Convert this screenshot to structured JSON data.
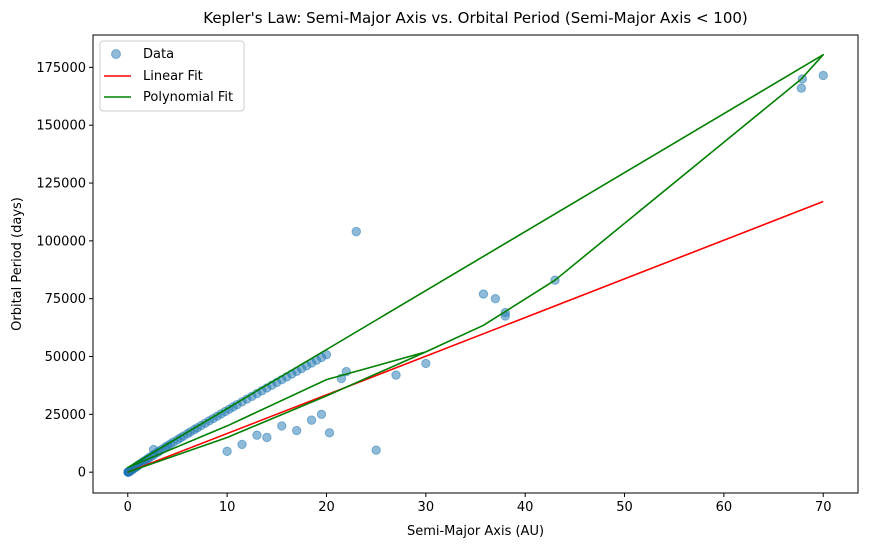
{
  "chart_data": {
    "type": "scatter",
    "title": "Kepler's Law: Semi-Major Axis vs. Orbital Period (Semi-Major Axis < 100)",
    "xlabel": "Semi-Major Axis (AU)",
    "ylabel": "Orbital Period (days)",
    "xlim": [
      -3.5,
      73.5
    ],
    "ylim": [
      -9000,
      189000
    ],
    "xticks": [
      0,
      10,
      20,
      30,
      40,
      50,
      60,
      70
    ],
    "yticks": [
      0,
      25000,
      50000,
      75000,
      100000,
      125000,
      150000,
      175000
    ],
    "grid": false,
    "legend_position": "top-left",
    "colors": {
      "data": "#1f77b4",
      "linear": "#ff0000",
      "poly": "#008000"
    },
    "legend": [
      "Data",
      "Linear Fit",
      "Polynomial Fit"
    ],
    "series": [
      {
        "name": "Data",
        "kind": "scatter",
        "x": [
          0.02,
          0.04,
          0.05,
          0.06,
          0.08,
          0.1,
          0.12,
          0.15,
          0.2,
          0.25,
          0.3,
          0.4,
          0.5,
          0.6,
          0.7,
          0.8,
          0.9,
          1.0,
          1.1,
          1.2,
          1.3,
          1.5,
          1.6,
          1.8,
          2.0,
          2.2,
          2.5,
          2.7,
          3.0,
          3.2,
          3.5,
          3.8,
          4.0,
          4.3,
          4.6,
          5.0,
          5.3,
          5.6,
          6.0,
          6.3,
          6.7,
          7.0,
          7.4,
          7.8,
          8.2,
          8.6,
          9.0,
          9.4,
          9.8,
          10.2,
          10.6,
          11.0,
          11.5,
          12.0,
          12.5,
          13.0,
          13.5,
          14.0,
          14.5,
          15.0,
          15.5,
          16.0,
          16.5,
          17.0,
          17.5,
          18.0,
          18.5,
          19.0,
          19.5,
          20.0,
          0.9,
          2.6,
          10.0,
          11.5,
          13.0,
          14.0,
          15.5,
          17.0,
          18.5,
          19.5,
          20.3,
          21.5,
          22.0,
          23.0,
          25.0,
          27.0,
          30.0,
          35.8,
          37.0,
          38.0,
          38.0,
          43.0,
          67.8,
          67.9,
          70.0
        ],
        "y": [
          10,
          30,
          60,
          80,
          120,
          200,
          250,
          300,
          400,
          550,
          700,
          1000,
          1300,
          1600,
          1900,
          2200,
          2500,
          2800,
          3100,
          3400,
          3700,
          4300,
          4600,
          5200,
          5800,
          6400,
          7200,
          7800,
          8600,
          9200,
          10000,
          10800,
          11400,
          12200,
          13000,
          14000,
          14800,
          15600,
          16600,
          17400,
          18400,
          19200,
          20200,
          21200,
          22200,
          23200,
          24200,
          25200,
          26200,
          27200,
          28200,
          29200,
          30400,
          31600,
          32800,
          34000,
          35200,
          36400,
          37600,
          38800,
          40000,
          41200,
          42400,
          43600,
          44800,
          46000,
          47200,
          48400,
          49600,
          50800,
          2500,
          9800,
          9000,
          12000,
          16000,
          15000,
          20000,
          18000,
          22500,
          25000,
          17000,
          40500,
          43500,
          104000,
          9500,
          42000,
          47000,
          77000,
          75000,
          69000,
          67500,
          83000,
          166000,
          170000,
          171500
        ]
      },
      {
        "name": "Linear Fit",
        "kind": "line",
        "x": [
          0,
          70
        ],
        "y": [
          0,
          117000
        ]
      },
      {
        "name": "Polynomial Fit",
        "kind": "line",
        "x": [
          0,
          10,
          20,
          30,
          35.8,
          43,
          67.8,
          70,
          0,
          10,
          20,
          30,
          35.8
        ],
        "y": [
          0,
          15000,
          33000,
          52000,
          63500,
          83000,
          170000,
          180500,
          2000,
          20000,
          40000,
          52000,
          63500
        ]
      }
    ]
  }
}
